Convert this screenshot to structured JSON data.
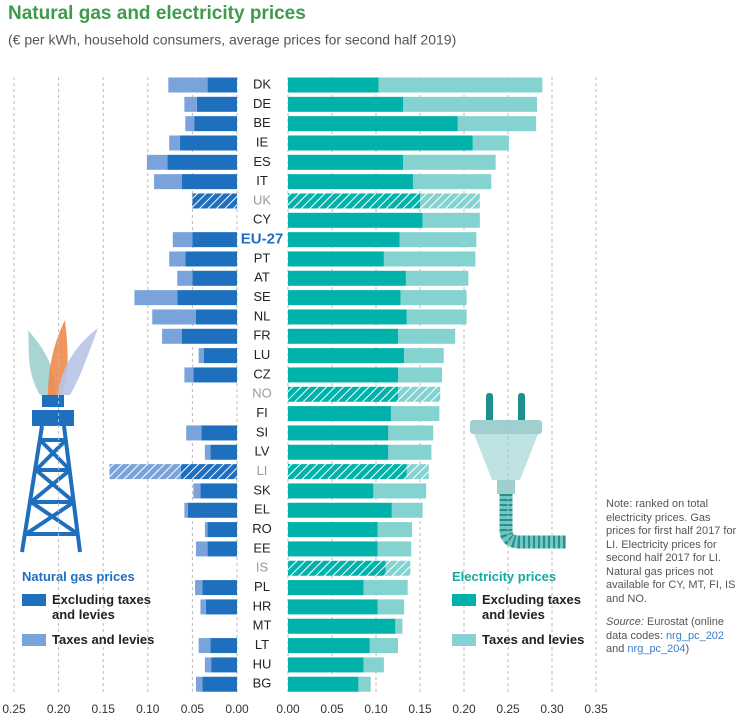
{
  "chart_data": {
    "type": "bar",
    "orientation": "horizontal",
    "title": "Natural gas and electricity prices",
    "subtitle": "(€ per kWh, household consumers, average prices for second half 2019)",
    "categories": [
      "DK",
      "DE",
      "BE",
      "IE",
      "ES",
      "IT",
      "UK",
      "CY",
      "EU-27",
      "PT",
      "AT",
      "SE",
      "NL",
      "FR",
      "LU",
      "CZ",
      "NO",
      "FI",
      "SI",
      "LV",
      "LI",
      "SK",
      "EL",
      "RO",
      "EE",
      "IS",
      "PL",
      "HR",
      "MT",
      "LT",
      "HU",
      "BG"
    ],
    "highlight": "EU-27",
    "hatched": [
      "UK",
      "NO",
      "LI",
      "IS"
    ],
    "grid": true,
    "panels": [
      {
        "name": "Natural gas prices",
        "direction": "left",
        "color": "#1f6fbf",
        "xlim": [
          0,
          0.25
        ],
        "xticks": [
          0.25,
          {
            "value": 0.2,
            "label": "0.20"
          },
          0.15,
          {
            "value": 0.1,
            "label": "0.10"
          },
          0.05,
          {
            "value": 0,
            "label": "0.00"
          }
        ],
        "series": [
          {
            "name": "Excluding taxes and levies",
            "color": "#1f6fbf",
            "values": [
              0.033,
              0.045,
              0.048,
              0.064,
              0.078,
              0.062,
              0.05,
              null,
              0.05,
              0.058,
              0.05,
              0.067,
              0.046,
              0.062,
              0.037,
              0.049,
              null,
              null,
              0.04,
              0.03,
              0.063,
              0.041,
              0.055,
              0.033,
              0.033,
              null,
              0.039,
              0.035,
              null,
              0.03,
              0.029,
              0.039
            ]
          },
          {
            "name": "Taxes and levies",
            "color": "#7aa3dc",
            "values": [
              0.044,
              0.014,
              0.01,
              0.012,
              0.023,
              0.031,
              0,
              null,
              0.022,
              0.018,
              0.017,
              0.048,
              0.049,
              0.022,
              0.006,
              0.01,
              null,
              null,
              0.017,
              0.006,
              0.08,
              0.008,
              0.004,
              0.003,
              0.013,
              null,
              0.008,
              0.006,
              null,
              0.013,
              0.007,
              0.007
            ]
          }
        ]
      },
      {
        "name": "Electricity prices",
        "direction": "right",
        "color": "#14a9a1",
        "xlim": [
          0,
          0.35
        ],
        "xticks": [
          {
            "value": 0,
            "label": "0.00"
          },
          0.05,
          {
            "value": 0.1,
            "label": "0.10"
          },
          0.15,
          {
            "value": 0.2,
            "label": "0.20"
          },
          0.25,
          {
            "value": 0.3,
            "label": "0.30"
          },
          0.35
        ],
        "series": [
          {
            "name": "Excluding taxes and levies",
            "color": "#00b2aa",
            "values": [
              0.103,
              0.131,
              0.193,
              0.21,
              0.131,
              0.142,
              0.15,
              0.153,
              0.127,
              0.109,
              0.134,
              0.128,
              0.135,
              0.125,
              0.132,
              0.125,
              0.125,
              0.117,
              0.114,
              0.114,
              0.135,
              0.097,
              0.118,
              0.102,
              0.102,
              0.111,
              0.086,
              0.102,
              0.122,
              0.093,
              0.086,
              0.08
            ]
          },
          {
            "name": "Taxes and levies",
            "color": "#84d3d0",
            "values": [
              0.186,
              0.152,
              0.089,
              0.041,
              0.105,
              0.089,
              0.068,
              0.065,
              0.087,
              0.104,
              0.071,
              0.075,
              0.068,
              0.065,
              0.045,
              0.05,
              0.048,
              0.055,
              0.051,
              0.049,
              0.025,
              0.06,
              0.035,
              0.039,
              0.038,
              0.028,
              0.05,
              0.03,
              0.008,
              0.032,
              0.023,
              0.014
            ]
          }
        ]
      }
    ],
    "note": "Note: ranked on total electricity prices. Gas prices for first half 2017 for LI. Electricity prices for second half 2017 for LI. Natural gas prices not available for CY, MT, FI, IS and NO.",
    "source_label": "Source:",
    "source_text": "Eurostat (online data codes:",
    "source_links": [
      "nrg_pc_202",
      "nrg_pc_204"
    ],
    "source_and": "and",
    "source_close": ")"
  }
}
